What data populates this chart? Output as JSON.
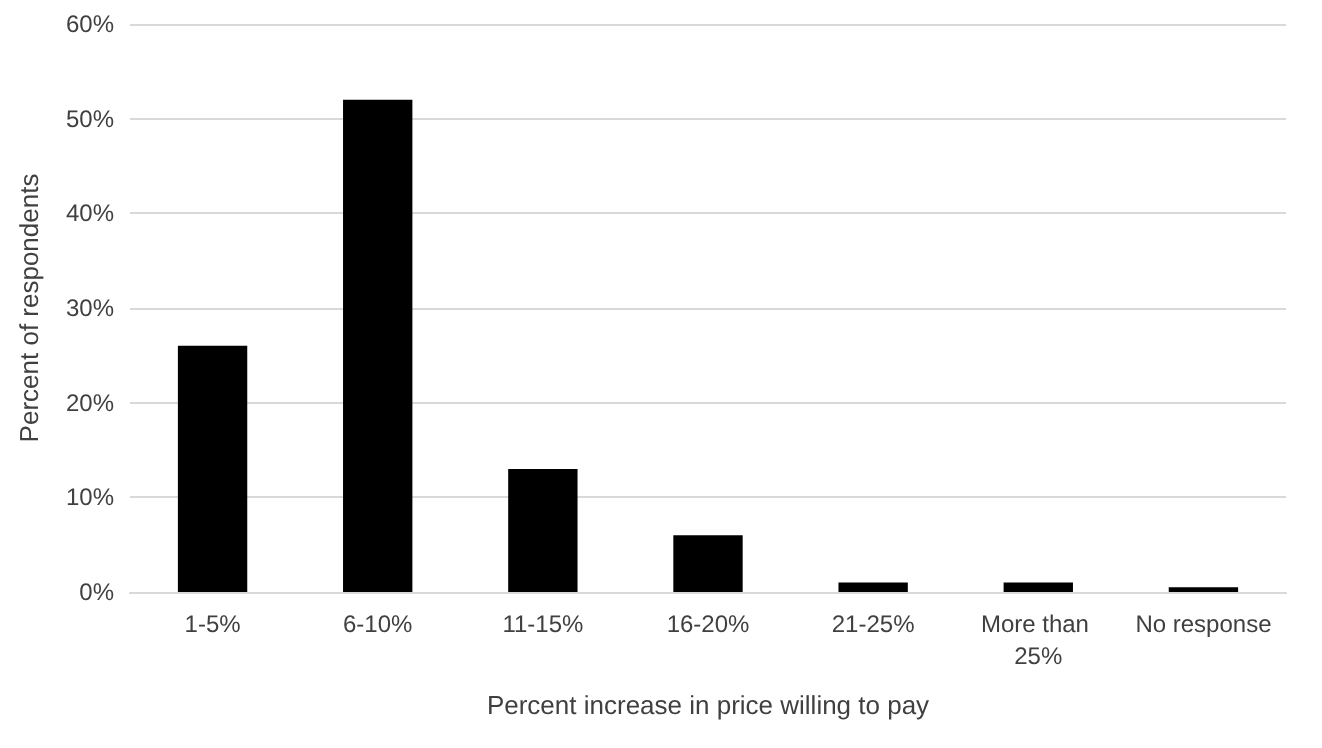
{
  "chart_data": {
    "type": "bar",
    "xlabel": "Percent increase in price willing to pay",
    "ylabel": "Percent of respondents",
    "categories": [
      "1-5%",
      "6-10%",
      "11-15%",
      "16-20%",
      "21-25%",
      "More than 25%",
      "No response"
    ],
    "values": [
      26,
      52,
      13,
      6,
      1,
      1,
      0.5
    ],
    "color": "#000000",
    "ylim": [
      0,
      60
    ],
    "yticks": [
      {
        "value": 0,
        "label": "0%"
      },
      {
        "value": 10,
        "label": "10%"
      },
      {
        "value": 20,
        "label": "20%"
      },
      {
        "value": 30,
        "label": "30%"
      },
      {
        "value": 40,
        "label": "40%"
      },
      {
        "value": 50,
        "label": "50%"
      },
      {
        "value": 60,
        "label": "60%"
      }
    ],
    "grid": "y"
  }
}
